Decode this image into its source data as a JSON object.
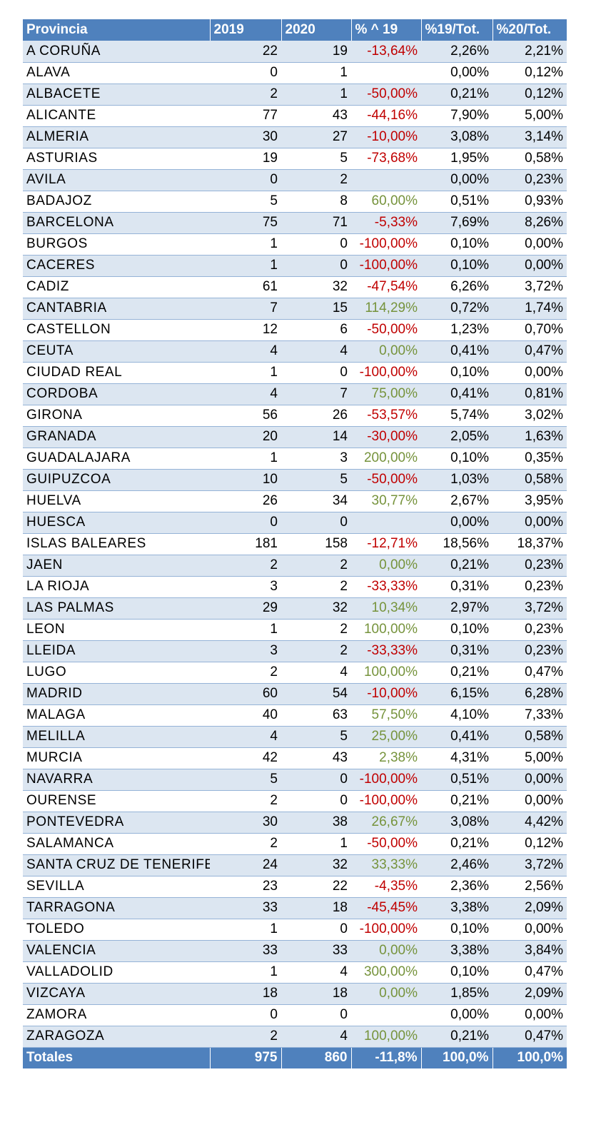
{
  "colors": {
    "header_bg": "#4f81bd",
    "band_blue": "#dce6f1",
    "negative": "#c00000",
    "positive": "#76933c"
  },
  "headers": [
    "Provincia",
    "2019",
    "2020",
    "% ^ 19",
    "%19/Tot.",
    "%20/Tot."
  ],
  "rows": [
    [
      "A CORUÑA",
      "22",
      "19",
      "-13,64%",
      "2,26%",
      "2,21%"
    ],
    [
      "ALAVA",
      "0",
      "1",
      "",
      "0,00%",
      "0,12%"
    ],
    [
      "ALBACETE",
      "2",
      "1",
      "-50,00%",
      "0,21%",
      "0,12%"
    ],
    [
      "ALICANTE",
      "77",
      "43",
      "-44,16%",
      "7,90%",
      "5,00%"
    ],
    [
      "ALMERIA",
      "30",
      "27",
      "-10,00%",
      "3,08%",
      "3,14%"
    ],
    [
      "ASTURIAS",
      "19",
      "5",
      "-73,68%",
      "1,95%",
      "0,58%"
    ],
    [
      "AVILA",
      "0",
      "2",
      "",
      "0,00%",
      "0,23%"
    ],
    [
      "BADAJOZ",
      "5",
      "8",
      "60,00%",
      "0,51%",
      "0,93%"
    ],
    [
      "BARCELONA",
      "75",
      "71",
      "-5,33%",
      "7,69%",
      "8,26%"
    ],
    [
      "BURGOS",
      "1",
      "0",
      "-100,00%",
      "0,10%",
      "0,00%"
    ],
    [
      "CACERES",
      "1",
      "0",
      "-100,00%",
      "0,10%",
      "0,00%"
    ],
    [
      "CADIZ",
      "61",
      "32",
      "-47,54%",
      "6,26%",
      "3,72%"
    ],
    [
      "CANTABRIA",
      "7",
      "15",
      "114,29%",
      "0,72%",
      "1,74%"
    ],
    [
      "CASTELLON",
      "12",
      "6",
      "-50,00%",
      "1,23%",
      "0,70%"
    ],
    [
      "CEUTA",
      "4",
      "4",
      "0,00%",
      "0,41%",
      "0,47%"
    ],
    [
      "CIUDAD REAL",
      "1",
      "0",
      "-100,00%",
      "0,10%",
      "0,00%"
    ],
    [
      "CORDOBA",
      "4",
      "7",
      "75,00%",
      "0,41%",
      "0,81%"
    ],
    [
      "GIRONA",
      "56",
      "26",
      "-53,57%",
      "5,74%",
      "3,02%"
    ],
    [
      "GRANADA",
      "20",
      "14",
      "-30,00%",
      "2,05%",
      "1,63%"
    ],
    [
      "GUADALAJARA",
      "1",
      "3",
      "200,00%",
      "0,10%",
      "0,35%"
    ],
    [
      "GUIPUZCOA",
      "10",
      "5",
      "-50,00%",
      "1,03%",
      "0,58%"
    ],
    [
      "HUELVA",
      "26",
      "34",
      "30,77%",
      "2,67%",
      "3,95%"
    ],
    [
      "HUESCA",
      "0",
      "0",
      "",
      "0,00%",
      "0,00%"
    ],
    [
      "ISLAS BALEARES",
      "181",
      "158",
      "-12,71%",
      "18,56%",
      "18,37%"
    ],
    [
      "JAEN",
      "2",
      "2",
      "0,00%",
      "0,21%",
      "0,23%"
    ],
    [
      "LA RIOJA",
      "3",
      "2",
      "-33,33%",
      "0,31%",
      "0,23%"
    ],
    [
      "LAS PALMAS",
      "29",
      "32",
      "10,34%",
      "2,97%",
      "3,72%"
    ],
    [
      "LEON",
      "1",
      "2",
      "100,00%",
      "0,10%",
      "0,23%"
    ],
    [
      "LLEIDA",
      "3",
      "2",
      "-33,33%",
      "0,31%",
      "0,23%"
    ],
    [
      "LUGO",
      "2",
      "4",
      "100,00%",
      "0,21%",
      "0,47%"
    ],
    [
      "MADRID",
      "60",
      "54",
      "-10,00%",
      "6,15%",
      "6,28%"
    ],
    [
      "MALAGA",
      "40",
      "63",
      "57,50%",
      "4,10%",
      "7,33%"
    ],
    [
      "MELILLA",
      "4",
      "5",
      "25,00%",
      "0,41%",
      "0,58%"
    ],
    [
      "MURCIA",
      "42",
      "43",
      "2,38%",
      "4,31%",
      "5,00%"
    ],
    [
      "NAVARRA",
      "5",
      "0",
      "-100,00%",
      "0,51%",
      "0,00%"
    ],
    [
      "OURENSE",
      "2",
      "0",
      "-100,00%",
      "0,21%",
      "0,00%"
    ],
    [
      "PONTEVEDRA",
      "30",
      "38",
      "26,67%",
      "3,08%",
      "4,42%"
    ],
    [
      "SALAMANCA",
      "2",
      "1",
      "-50,00%",
      "0,21%",
      "0,12%"
    ],
    [
      "SANTA CRUZ DE TENERIFE",
      "24",
      "32",
      "33,33%",
      "2,46%",
      "3,72%"
    ],
    [
      "SEVILLA",
      "23",
      "22",
      "-4,35%",
      "2,36%",
      "2,56%"
    ],
    [
      "TARRAGONA",
      "33",
      "18",
      "-45,45%",
      "3,38%",
      "2,09%"
    ],
    [
      "TOLEDO",
      "1",
      "0",
      "-100,00%",
      "0,10%",
      "0,00%"
    ],
    [
      "VALENCIA",
      "33",
      "33",
      "0,00%",
      "3,38%",
      "3,84%"
    ],
    [
      "VALLADOLID",
      "1",
      "4",
      "300,00%",
      "0,10%",
      "0,47%"
    ],
    [
      "VIZCAYA",
      "18",
      "18",
      "0,00%",
      "1,85%",
      "2,09%"
    ],
    [
      "ZAMORA",
      "0",
      "0",
      "",
      "0,00%",
      "0,00%"
    ],
    [
      "ZARAGOZA",
      "2",
      "4",
      "100,00%",
      "0,21%",
      "0,47%"
    ]
  ],
  "totals": [
    "Totales",
    "975",
    "860",
    "-11,8%",
    "100,0%",
    "100,0%"
  ]
}
